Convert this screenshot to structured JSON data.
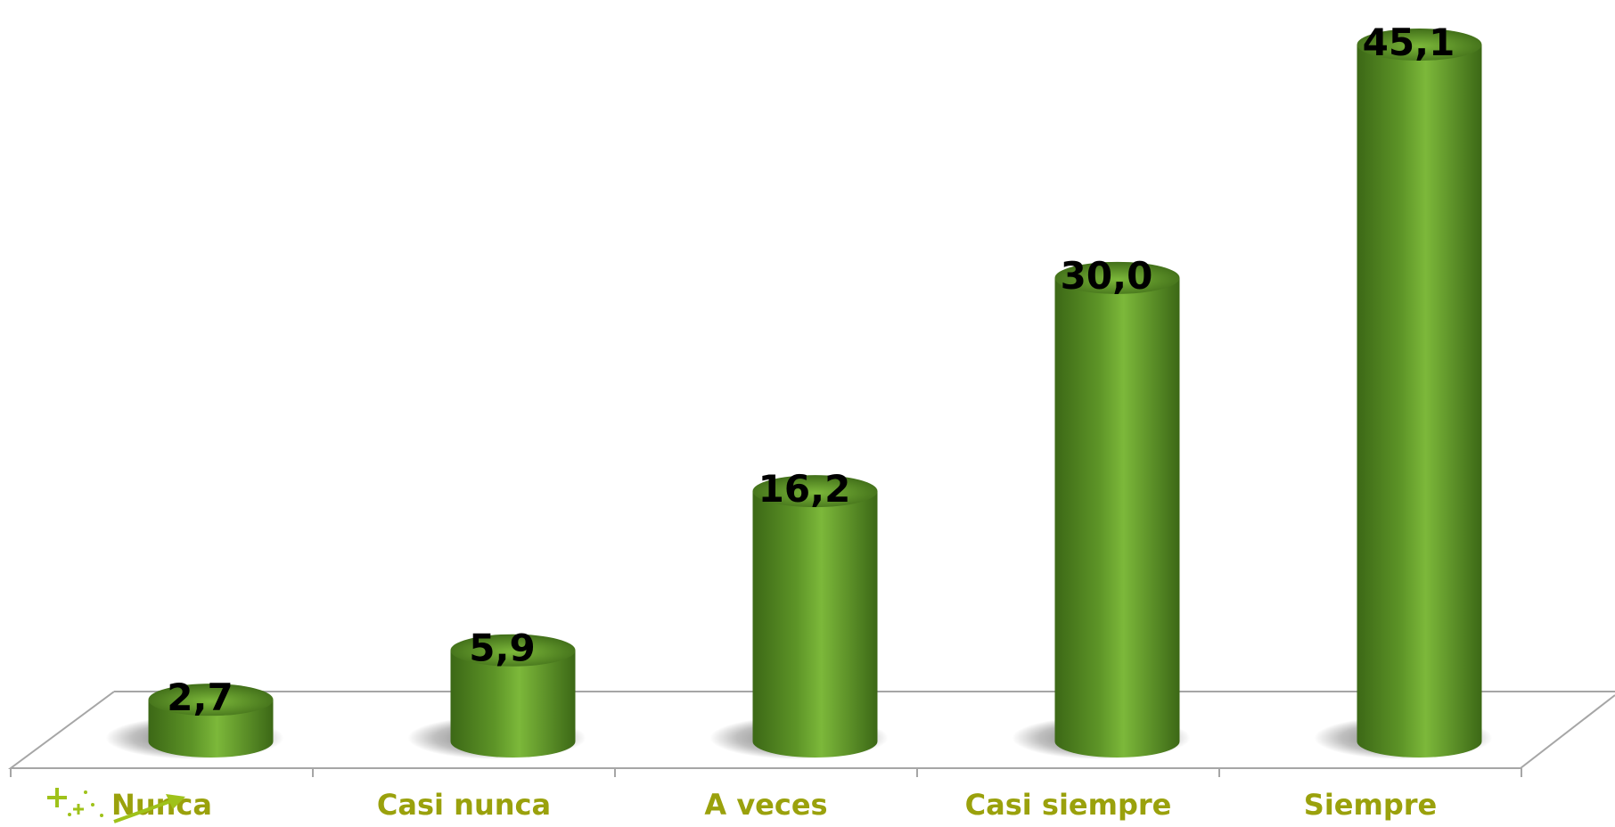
{
  "chart_data": {
    "type": "bar",
    "style": "3d-cylinder",
    "categories": [
      "Nunca",
      "Casi nunca",
      "A veces",
      "Casi siempre",
      "Siempre"
    ],
    "values": [
      2.7,
      5.9,
      16.2,
      30.0,
      45.1
    ],
    "value_labels": [
      "2,7",
      "5,9",
      "16,2",
      "30,0",
      "45,1"
    ],
    "title": "",
    "xlabel": "",
    "ylabel": "",
    "ylim": [
      0,
      45.1
    ],
    "grid": false,
    "legend": "none"
  },
  "colors": {
    "bar": "#5d9427",
    "bar_dark": "#3c6816",
    "bar_light": "#7cb83a",
    "category_text": "#9aa10c",
    "floor_line": "#a6a6a6",
    "logo": "#9fc21a"
  },
  "icons": {
    "corner_logo": "sparkle-arrow-logo"
  }
}
